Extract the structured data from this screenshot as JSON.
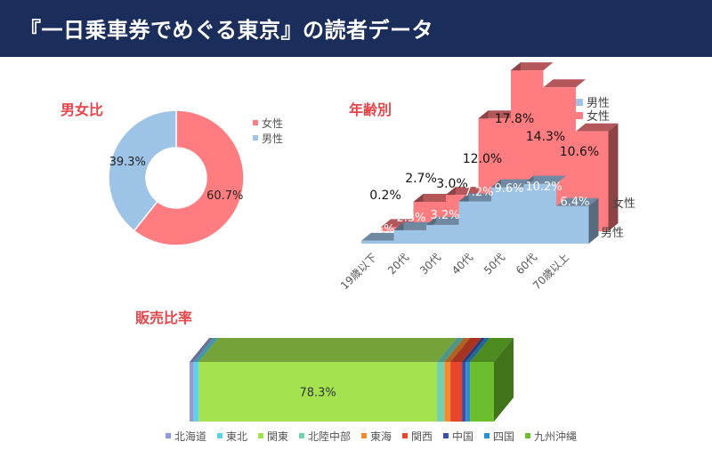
{
  "header": {
    "title": "『一日乗車券でめぐる東京』の読者データ"
  },
  "colors": {
    "header_bg": "#1b2d5b",
    "accent_red": "#e8454a",
    "female": "#ff7c80",
    "male": "#9dc3e6"
  },
  "chart_data": [
    {
      "type": "pie",
      "title": "男女比",
      "donut": true,
      "categories": [
        "女性",
        "男性"
      ],
      "values": [
        60.7,
        39.3
      ],
      "labels": [
        "60.7%",
        "39.3%"
      ],
      "legend": [
        "女性",
        "男性"
      ],
      "legend_position": "right"
    },
    {
      "type": "area",
      "variant": "3d-stepped",
      "title": "年齢別",
      "categories": [
        "19歳以下",
        "20代",
        "30代",
        "40代",
        "50代",
        "60代",
        "70歳以上"
      ],
      "series": [
        {
          "name": "男性",
          "values": [
            0.5,
            2.3,
            3.2,
            7.2,
            9.6,
            10.2,
            6.4
          ],
          "labels": [
            "0.5%",
            "2.3%",
            "3.2%",
            "7.2%",
            "9.6%",
            "10.2%",
            "6.4%"
          ]
        },
        {
          "name": "女性",
          "values": [
            0.2,
            2.7,
            3.0,
            12.0,
            17.8,
            14.3,
            10.6
          ],
          "labels": [
            "0.2%",
            "2.7%",
            "3.0%",
            "12.0%",
            "17.8%",
            "14.3%",
            "10.6%"
          ]
        }
      ],
      "legend": [
        "男性",
        "女性"
      ],
      "legend_position": "top-right",
      "depth_labels": [
        "女性",
        "男性"
      ]
    },
    {
      "type": "bar",
      "variant": "3d-stacked-100-horizontal",
      "title": "販売比率",
      "categories": [
        "北海道",
        "東北",
        "関東",
        "北陸中部",
        "東海",
        "関西",
        "中国",
        "四国",
        "九州沖縄"
      ],
      "values": [
        1.4,
        1.6,
        78.3,
        2.4,
        2.0,
        3.8,
        1.2,
        1.5,
        7.8
      ],
      "labels": [
        "",
        "",
        "78.3%",
        "",
        "",
        "",
        "",
        "",
        ""
      ],
      "legend_position": "bottom"
    }
  ]
}
